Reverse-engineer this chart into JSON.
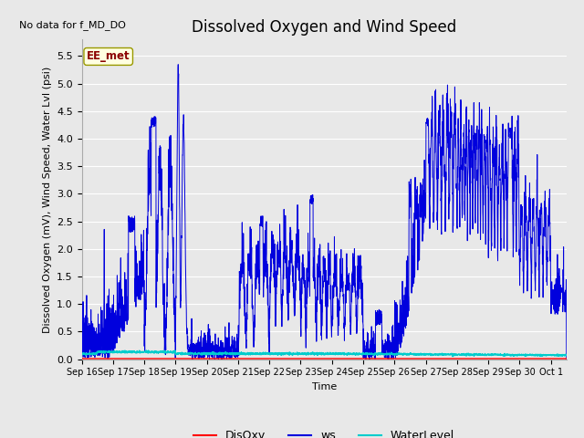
{
  "title": "Dissolved Oxygen and Wind Speed",
  "subtitle": "No data for f_MD_DO",
  "xlabel": "Time",
  "ylabel": "Dissolved Oxygen (mV), Wind Speed, Water Lvl (psi)",
  "ylim": [
    0.0,
    5.8
  ],
  "yticks": [
    0.0,
    0.5,
    1.0,
    1.5,
    2.0,
    2.5,
    3.0,
    3.5,
    4.0,
    4.5,
    5.0,
    5.5
  ],
  "annotation_box": "EE_met",
  "legend_labels": [
    "DisOxy",
    "ws",
    "WaterLevel"
  ],
  "disoxy_color": "#ff0000",
  "ws_color": "#0000dd",
  "water_level_color": "#00cccc",
  "fig_bg_color": "#e8e8e8",
  "plot_bg_color": "#e8e8e8",
  "title_fontsize": 12,
  "axis_label_fontsize": 8,
  "tick_label_fontsize": 8,
  "legend_fontsize": 9
}
